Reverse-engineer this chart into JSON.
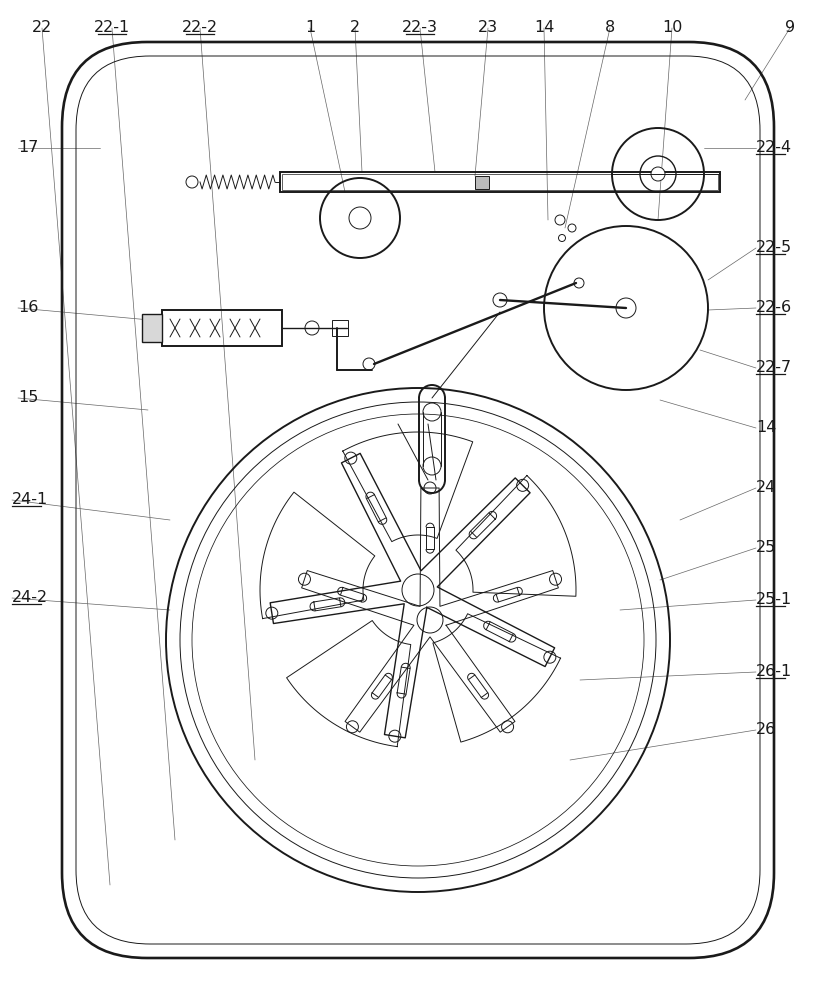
{
  "fig_width": 8.36,
  "fig_height": 10.0,
  "bg_color": "#ffffff",
  "line_color": "#1a1a1a",
  "lw_main": 1.4,
  "lw_med": 1.0,
  "lw_thin": 0.7,
  "font_size": 11.5,
  "top_labels": [
    [
      "22",
      42,
      28
    ],
    [
      "22-1",
      112,
      28
    ],
    [
      "22-2",
      200,
      28
    ],
    [
      "1",
      310,
      28
    ],
    [
      "2",
      355,
      28
    ],
    [
      "22-3",
      420,
      28
    ],
    [
      "23",
      488,
      28
    ],
    [
      "14",
      544,
      28
    ],
    [
      "8",
      610,
      28
    ],
    [
      "10",
      672,
      28
    ],
    [
      "9",
      790,
      28
    ]
  ],
  "right_labels": [
    [
      "22-4",
      756,
      148
    ],
    [
      "22-5",
      756,
      248
    ],
    [
      "22-6",
      756,
      308
    ],
    [
      "22-7",
      756,
      368
    ],
    [
      "14",
      756,
      428
    ],
    [
      "24",
      756,
      488
    ],
    [
      "25",
      756,
      548
    ],
    [
      "25-1",
      756,
      600
    ],
    [
      "26-1",
      756,
      672
    ],
    [
      "26",
      756,
      730
    ]
  ],
  "left_labels": [
    [
      "17",
      18,
      148
    ],
    [
      "16",
      18,
      308
    ],
    [
      "15",
      18,
      398
    ],
    [
      "24-1",
      12,
      500
    ],
    [
      "24-2",
      12,
      598
    ]
  ]
}
